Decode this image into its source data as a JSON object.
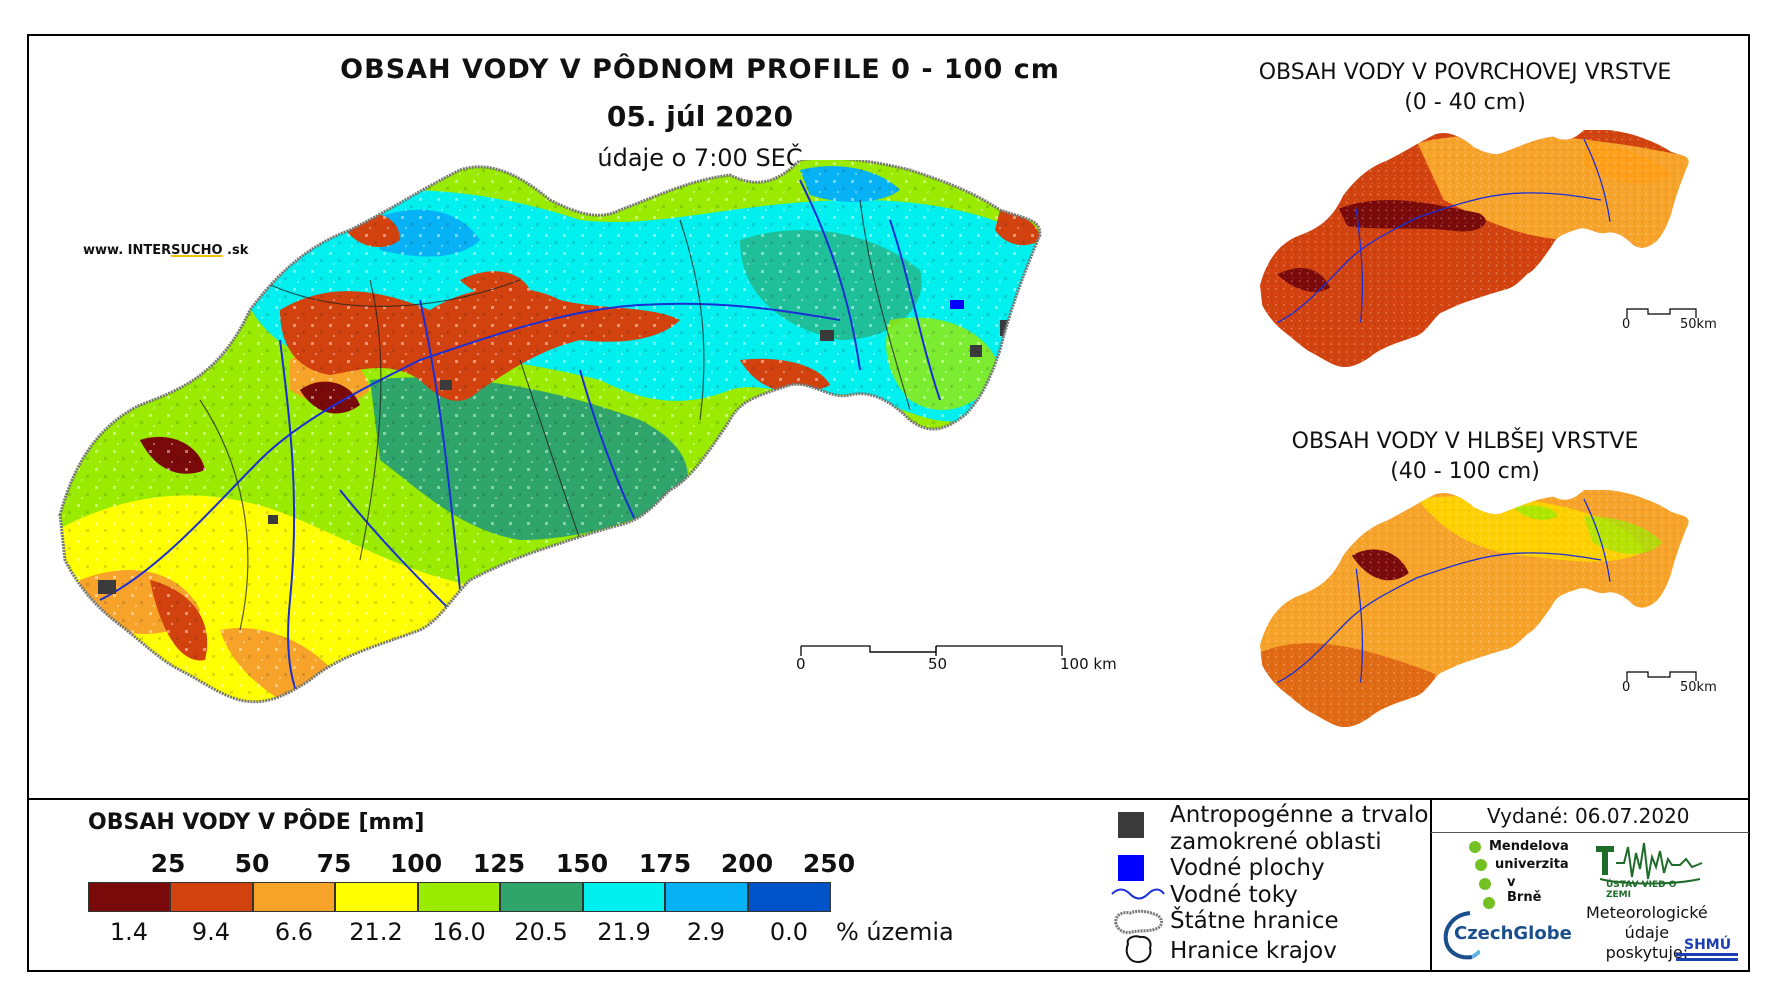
{
  "main_title": "OBSAH VODY V PÔDNOM PROFILE 0 - 100 cm",
  "date": "05. júl 2020",
  "data_time": "údaje o 7:00 SEČ",
  "website": {
    "prefix": "www. INTER",
    "brand": "SUCHO",
    "suffix": " .sk"
  },
  "main_scale": {
    "labels": [
      "0",
      "50",
      "100 km"
    ]
  },
  "inset_top": {
    "title_line1": "OBSAH VODY V POVRCHOVEJ VRSTVE",
    "title_line2": "(0 - 40 cm)",
    "scale_labels": [
      "0",
      "50km"
    ]
  },
  "inset_bottom": {
    "title_line1": "OBSAH VODY V HLBŠEJ VRSTVE",
    "title_line2": "(40 - 100 cm)",
    "scale_labels": [
      "0",
      "50km"
    ]
  },
  "legend": {
    "title": "OBSAH VODY V PÔDE [mm]",
    "class_limits": [
      "25",
      "50",
      "75",
      "100",
      "125",
      "150",
      "175",
      "200",
      "250"
    ],
    "colors": [
      "#7a0a0a",
      "#d2420f",
      "#f7a32a",
      "#ffff00",
      "#9aeb00",
      "#2fa56b",
      "#00f0f0",
      "#06b1f5",
      "#0052c8"
    ],
    "percentages": [
      "1.4",
      "9.4",
      "6.6",
      "21.2",
      "16.0",
      "20.5",
      "21.9",
      "2.9",
      "0.0"
    ],
    "percent_label": "% územia"
  },
  "symbols": [
    {
      "icon": "dark-square-icon",
      "label_line1": "Antropogénne a trvalo",
      "label_line2": "zamokrené oblasti"
    },
    {
      "icon": "blue-square-icon",
      "label_line1": "Vodné plochy"
    },
    {
      "icon": "blue-wave-line-icon",
      "label_line1": "Vodné toky"
    },
    {
      "icon": "state-border-icon",
      "label_line1": "Štátne hranice"
    },
    {
      "icon": "region-border-icon",
      "label_line1": "Hranice krajov"
    }
  ],
  "issued": "Vydané: 06.07.2020",
  "logos": {
    "mendel": [
      "Mendelova",
      "univerzita",
      "v Brně"
    ],
    "czechglobe": "CzechGlobe",
    "uvz": "ÚSTAV VIED O ZEMI",
    "meteo": [
      "Meteorologické",
      "údaje",
      "poskytuje:"
    ],
    "shmu": "SHMÚ"
  }
}
